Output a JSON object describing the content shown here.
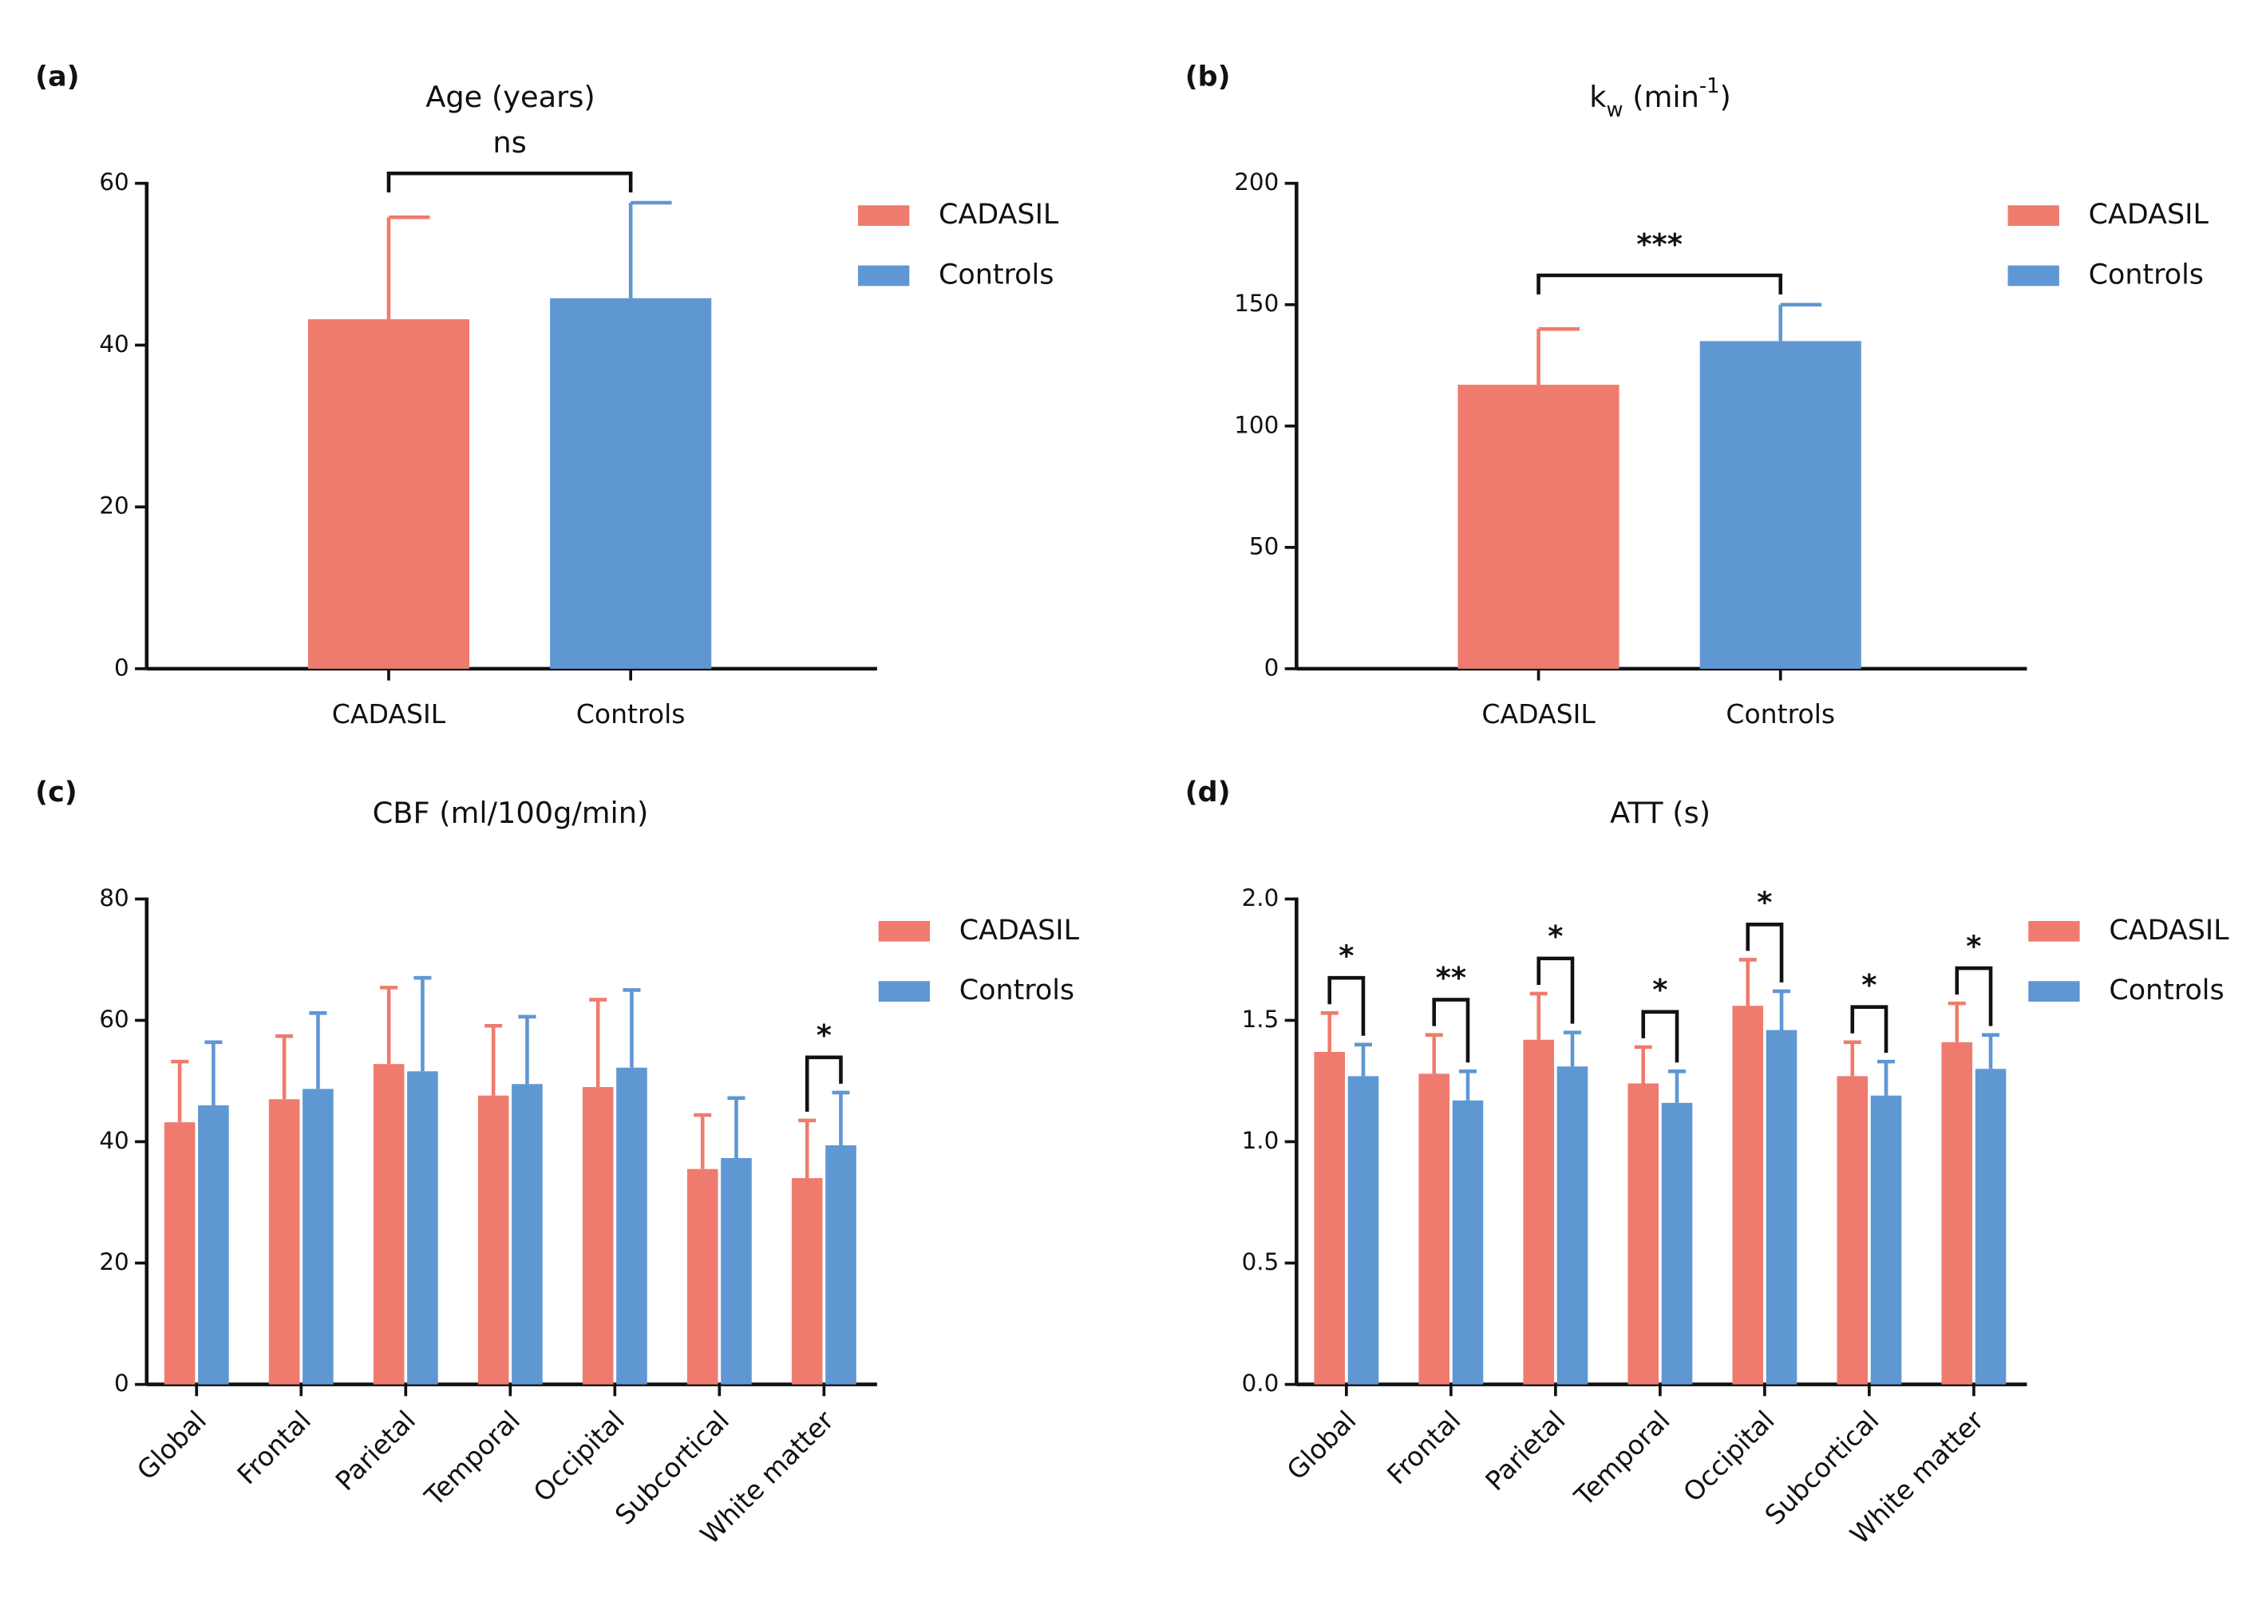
{
  "chart_data": [
    {
      "type": "bar",
      "label": "(a)",
      "title": [
        {
          "text": "Age (years)"
        }
      ],
      "categories": [
        "CADASIL",
        "Controls"
      ],
      "series": [
        {
          "name": "CADASIL",
          "color": "#ef7b6e",
          "values": [
            43.2,
            null
          ],
          "errors": [
            12.6,
            null
          ]
        },
        {
          "name": "Controls",
          "color": "#5f97d2",
          "values": [
            null,
            45.8
          ],
          "errors": [
            null,
            11.8
          ]
        }
      ],
      "ylim": [
        0,
        60
      ],
      "yticks": [
        0,
        20,
        40,
        60
      ],
      "annotation": "ns",
      "legend": "right"
    },
    {
      "type": "bar",
      "label": "(b)",
      "title": [
        {
          "text": "k"
        },
        {
          "text": "w",
          "script": "sub"
        },
        {
          "text": " (min"
        },
        {
          "text": "-1",
          "script": "super"
        },
        {
          "text": ")"
        }
      ],
      "categories": [
        "CADASIL",
        "Controls"
      ],
      "series": [
        {
          "name": "CADASIL",
          "color": "#ef7b6e",
          "values": [
            117,
            null
          ],
          "errors": [
            23,
            null
          ]
        },
        {
          "name": "Controls",
          "color": "#5f97d2",
          "values": [
            null,
            135
          ],
          "errors": [
            null,
            15
          ]
        }
      ],
      "ylim": [
        0,
        200
      ],
      "yticks": [
        0,
        50,
        100,
        150,
        200
      ],
      "annotation": "***",
      "legend": "right"
    },
    {
      "type": "bar",
      "label": "(c)",
      "title": [
        {
          "text": "CBF (ml/100g/min)"
        }
      ],
      "categories": [
        "Global",
        "Frontal",
        "Parietal",
        "Temporal",
        "Occipital",
        "Subcortical",
        "White matter"
      ],
      "series": [
        {
          "name": "CADASIL",
          "color": "#ef7b6e",
          "values": [
            43.2,
            47.0,
            52.8,
            47.6,
            49.0,
            35.5,
            34.0
          ],
          "errors": [
            10.0,
            10.4,
            12.6,
            11.5,
            14.4,
            8.9,
            9.5
          ]
        },
        {
          "name": "Controls",
          "color": "#5f97d2",
          "values": [
            46.0,
            48.7,
            51.6,
            49.5,
            52.2,
            37.3,
            39.4
          ],
          "errors": [
            10.4,
            12.5,
            15.4,
            11.1,
            12.8,
            9.9,
            8.7
          ]
        }
      ],
      "ylim": [
        0,
        80
      ],
      "yticks": [
        0,
        20,
        40,
        60,
        80
      ],
      "significance": [
        null,
        null,
        null,
        null,
        null,
        null,
        "*"
      ],
      "legend": "right"
    },
    {
      "type": "bar",
      "label": "(d)",
      "title": [
        {
          "text": "ATT (s)"
        }
      ],
      "categories": [
        "Global",
        "Frontal",
        "Parietal",
        "Temporal",
        "Occipital",
        "Subcortical",
        "White matter"
      ],
      "series": [
        {
          "name": "CADASIL",
          "color": "#ef7b6e",
          "values": [
            1.37,
            1.28,
            1.42,
            1.24,
            1.56,
            1.27,
            1.41
          ],
          "errors": [
            0.16,
            0.16,
            0.19,
            0.15,
            0.19,
            0.14,
            0.16
          ]
        },
        {
          "name": "Controls",
          "color": "#5f97d2",
          "values": [
            1.27,
            1.17,
            1.31,
            1.16,
            1.46,
            1.19,
            1.3
          ],
          "errors": [
            0.13,
            0.12,
            0.14,
            0.13,
            0.16,
            0.14,
            0.14
          ]
        }
      ],
      "ylim": [
        0,
        2
      ],
      "yticks": [
        {
          "value": 0,
          "label": "0.0"
        },
        0.5,
        {
          "value": 1,
          "label": "1.0"
        },
        1.5,
        {
          "value": 2,
          "label": "2.0"
        }
      ],
      "significance": [
        "*",
        "**",
        "*",
        "*",
        "*",
        "*",
        "*"
      ],
      "legend": "right"
    }
  ]
}
